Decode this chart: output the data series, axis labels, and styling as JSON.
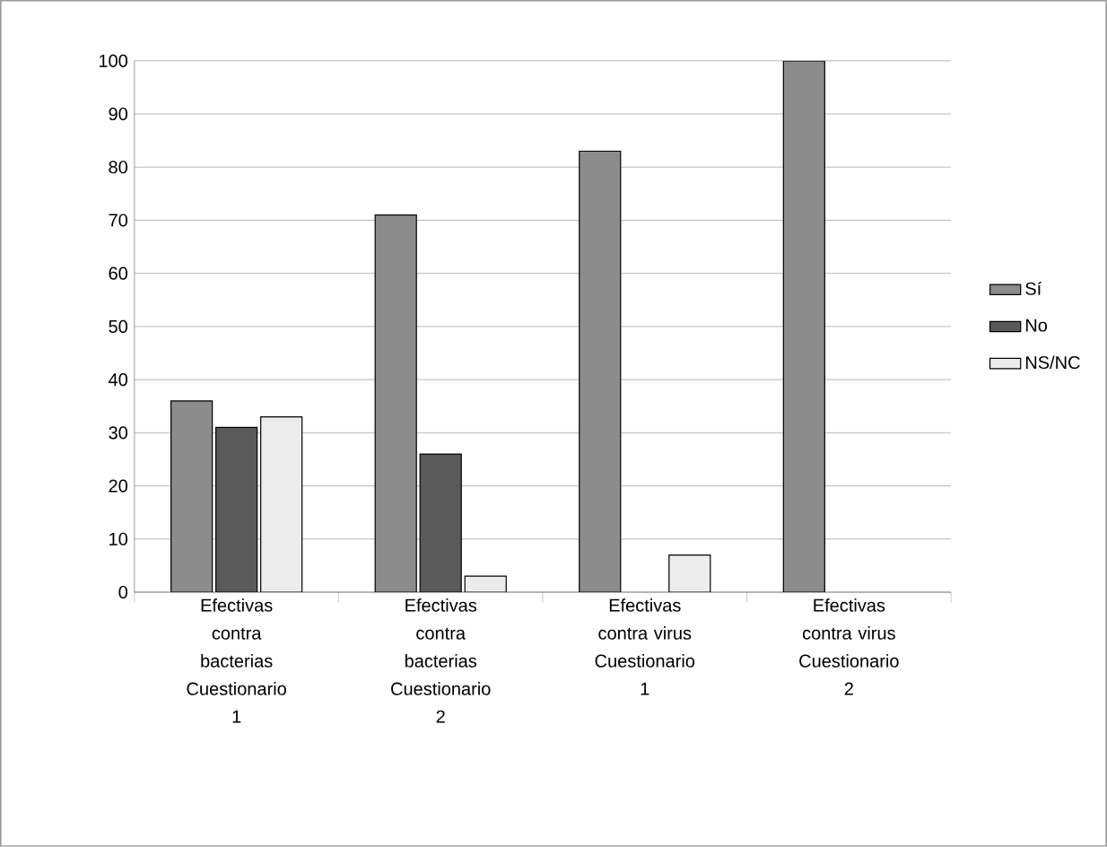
{
  "chart_data": {
    "type": "bar",
    "categories": [
      "Efectivas contra bacterias Cuestionario 1",
      "Efectivas contra bacterias Cuestionario 2",
      "Efectivas contra virus Cuestionario 1",
      "Efectivas contra virus Cuestionario 2"
    ],
    "series": [
      {
        "name": "Sí",
        "color": "#8c8c8c",
        "values": [
          36,
          71,
          83,
          100
        ]
      },
      {
        "name": "No",
        "color": "#5a5a5a",
        "values": [
          31,
          26,
          null,
          null
        ]
      },
      {
        "name": "NS/NC",
        "color": "#ececec",
        "values": [
          33,
          3,
          7,
          null
        ]
      }
    ],
    "ylim": [
      0,
      100
    ],
    "yticks": [
      0,
      10,
      20,
      30,
      40,
      50,
      60,
      70,
      80,
      90,
      100
    ],
    "grid": "y",
    "legend": "right"
  }
}
